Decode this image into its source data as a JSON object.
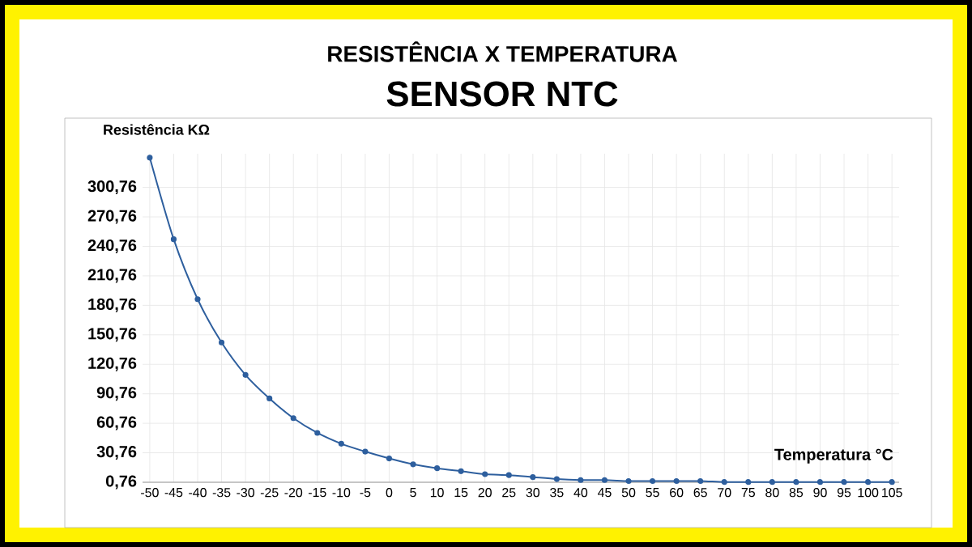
{
  "chart_data": {
    "type": "line",
    "title": "RESISTÊNCIA  X  TEMPERATURA",
    "subtitle": "SENSOR NTC",
    "ylabel": "Resistência KΩ",
    "xlabel": "Temperatura °C",
    "categories": [
      "-50",
      "-45",
      "-40",
      "-35",
      "-30",
      "-25",
      "-20",
      "-15",
      "-10",
      "-5",
      "0",
      "5",
      "10",
      "15",
      "20",
      "25",
      "30",
      "35",
      "40",
      "45",
      "50",
      "55",
      "60",
      "65",
      "70",
      "75",
      "80",
      "85",
      "90",
      "95",
      "100",
      "105"
    ],
    "series": [
      {
        "color": "#2e5f9e",
        "values": [
          331,
          248,
          187,
          143,
          110,
          86,
          66,
          51,
          40,
          32,
          25,
          19,
          15,
          12,
          9,
          8,
          6,
          4,
          3,
          3,
          2,
          2,
          2,
          2,
          1,
          1,
          1,
          1,
          1,
          1,
          1,
          1
        ]
      }
    ],
    "ylim": [
      0.76,
      335
    ],
    "yticks": [
      {
        "value": 0.76,
        "label": "0,76"
      },
      {
        "value": 30.76,
        "label": "30,76"
      },
      {
        "value": 60.76,
        "label": "60,76"
      },
      {
        "value": 90.76,
        "label": "90,76"
      },
      {
        "value": 120.76,
        "label": "120,76"
      },
      {
        "value": 150.76,
        "label": "150,76"
      },
      {
        "value": 180.76,
        "label": "180,76"
      },
      {
        "value": 210.76,
        "label": "210,76"
      },
      {
        "value": 240.76,
        "label": "240,76"
      },
      {
        "value": 270.76,
        "label": "270,76"
      },
      {
        "value": 300.76,
        "label": "300,76"
      }
    ],
    "grid": true,
    "marker": "circle",
    "line_style": "solid"
  }
}
